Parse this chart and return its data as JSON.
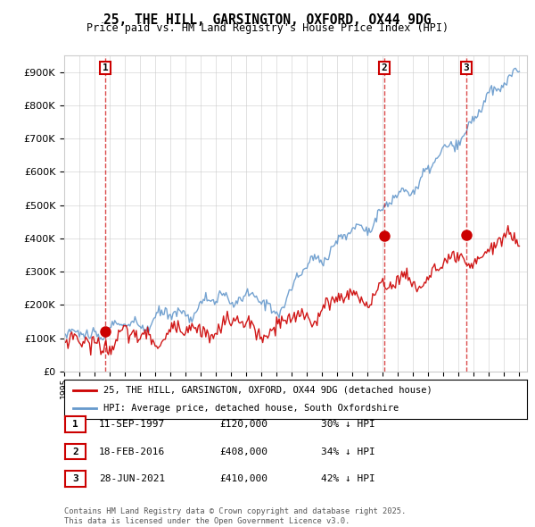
{
  "title": "25, THE HILL, GARSINGTON, OXFORD, OX44 9DG",
  "subtitle": "Price paid vs. HM Land Registry's House Price Index (HPI)",
  "legend_line1": "25, THE HILL, GARSINGTON, OXFORD, OX44 9DG (detached house)",
  "legend_line2": "HPI: Average price, detached house, South Oxfordshire",
  "footnote": "Contains HM Land Registry data © Crown copyright and database right 2025.\nThis data is licensed under the Open Government Licence v3.0.",
  "transactions": [
    {
      "num": 1,
      "date": "11-SEP-1997",
      "price": 120000,
      "pct": "30% ↓ HPI",
      "year": 1997.7
    },
    {
      "num": 2,
      "date": "18-FEB-2016",
      "price": 408000,
      "pct": "34% ↓ HPI",
      "year": 2016.1
    },
    {
      "num": 3,
      "date": "28-JUN-2021",
      "price": 410000,
      "pct": "42% ↓ HPI",
      "year": 2021.5
    }
  ],
  "hpi_color": "#6699cc",
  "price_color": "#cc0000",
  "vline_color": "#cc0000",
  "background_color": "#ffffff",
  "grid_color": "#cccccc",
  "ylim": [
    0,
    950000
  ],
  "xlim_start": 1995,
  "xlim_end": 2025.5
}
